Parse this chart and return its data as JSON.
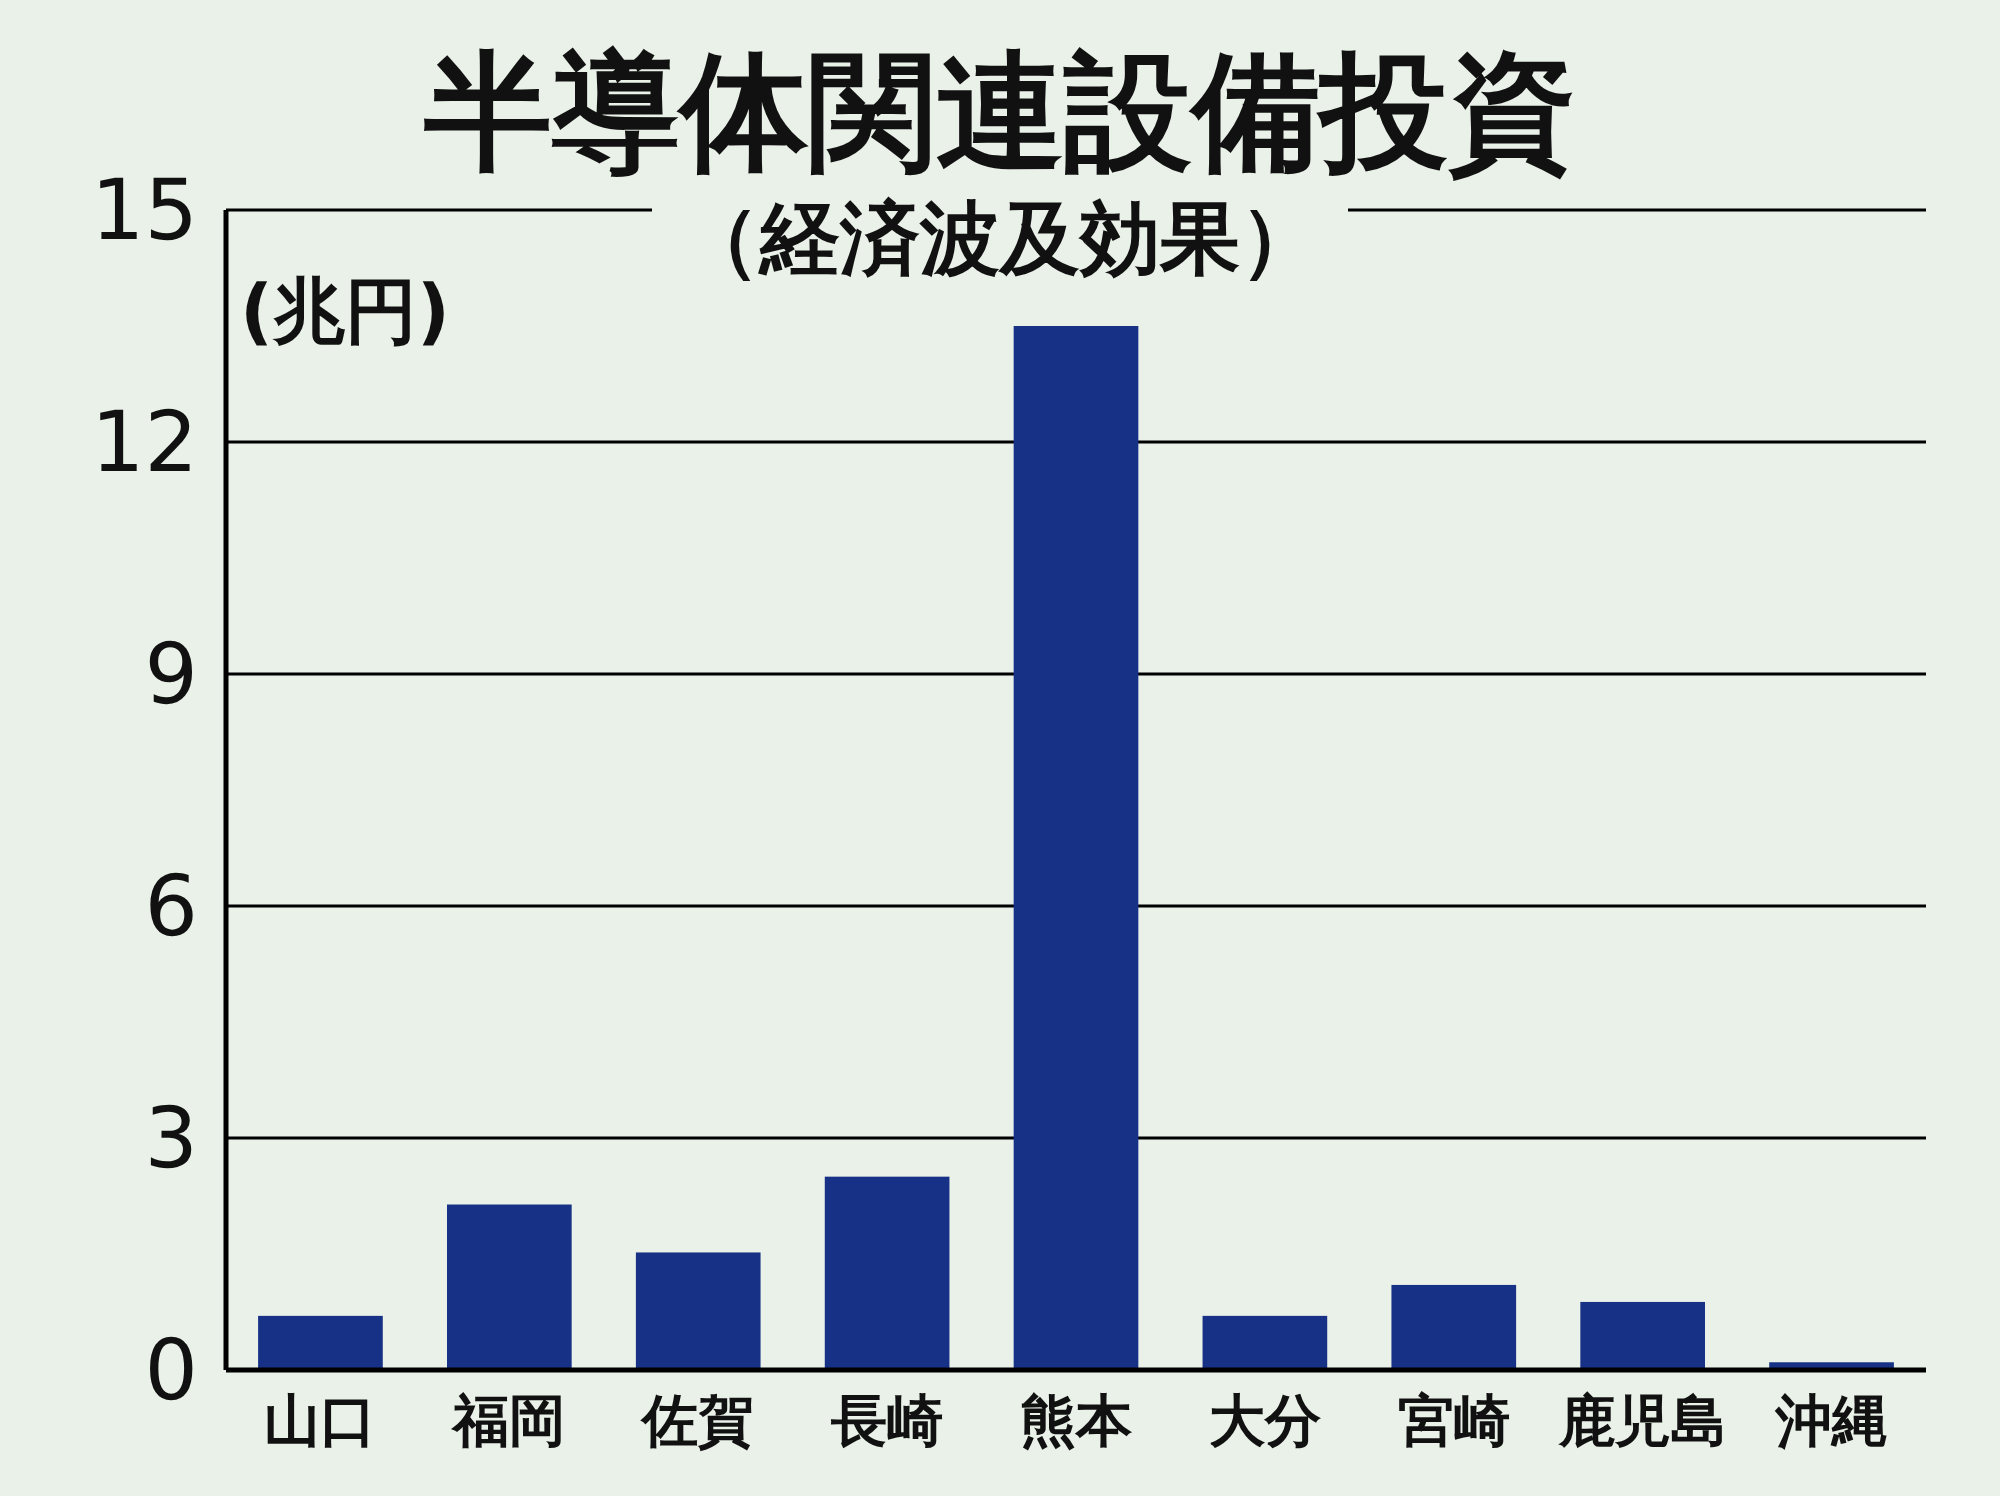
{
  "chart_data": {
    "type": "bar",
    "title": "半導体関連設備投資",
    "subtitle": "（経済波及効果）",
    "ylabel": "(兆円)",
    "categories": [
      "山口",
      "福岡",
      "佐賀",
      "長崎",
      "熊本",
      "大分",
      "宮崎",
      "鹿児島",
      "沖縄"
    ],
    "values": [
      0.7,
      2.14,
      1.52,
      2.5,
      13.5,
      0.7,
      1.1,
      0.88,
      0.1
    ],
    "color": "#173186",
    "ylim": [
      0,
      15
    ],
    "yticks": [
      0,
      3,
      6,
      9,
      12,
      15
    ],
    "grid": "y"
  }
}
